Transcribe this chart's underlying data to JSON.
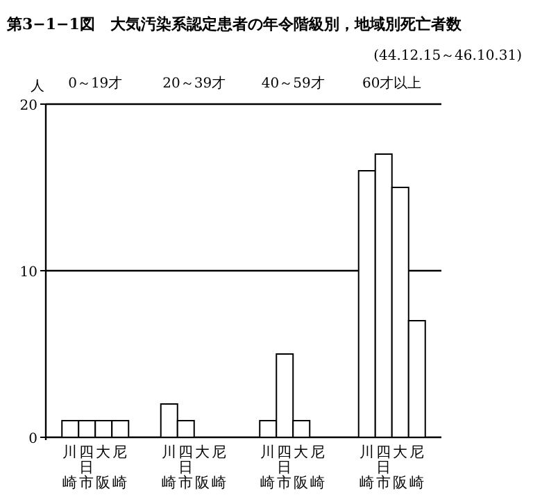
{
  "chart_data": {
    "type": "bar",
    "title": "第3−1−1図　大気汚染系認定患者の年令階級別，地域別死亡者数",
    "subtitle": "(44.12.15～46.10.31)",
    "ylabel": "人",
    "categories": [
      "0～19才",
      "20～39才",
      "40～59才",
      "60才以上"
    ],
    "series": [
      {
        "name": "川崎",
        "color": "#ffffff",
        "values": [
          1,
          2,
          1,
          16
        ]
      },
      {
        "name": "四日市",
        "color": "#ffffff",
        "values": [
          1,
          1,
          5,
          17
        ]
      },
      {
        "name": "大阪",
        "color": "#ffffff",
        "values": [
          1,
          0,
          1,
          15
        ]
      },
      {
        "name": "尼崎",
        "color": "#ffffff",
        "values": [
          1,
          0,
          0,
          7
        ]
      }
    ],
    "ylim": [
      0,
      20
    ],
    "yticks": [
      0,
      10,
      20
    ],
    "grid": "y"
  }
}
